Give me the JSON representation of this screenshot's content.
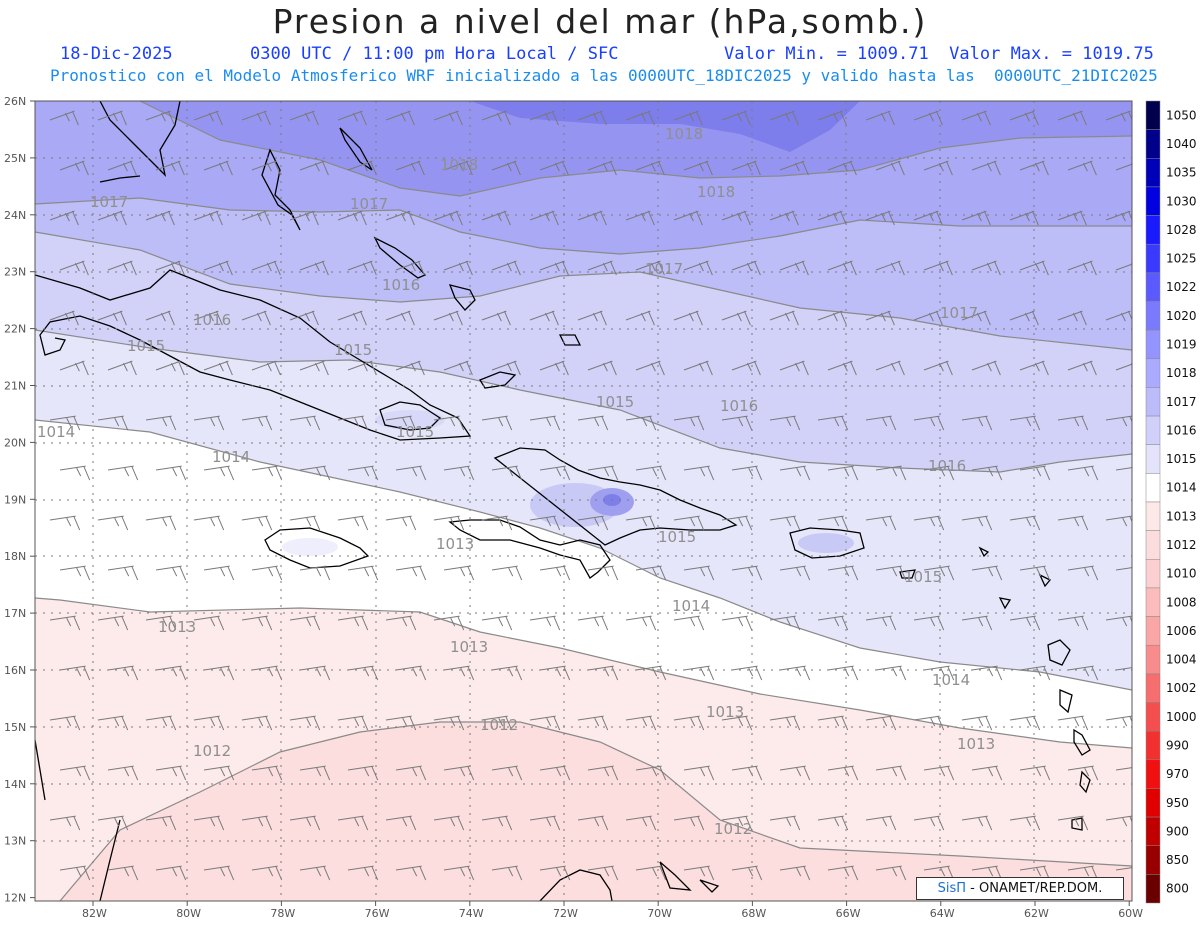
{
  "header": {
    "title": "Presion a nivel del mar (hPa,somb.)",
    "date": "18-Dic-2025",
    "time": "0300 UTC / 11:00 pm Hora Local / SFC",
    "minmax": "Valor Min. = 1009.71  Valor Max. = 1019.75",
    "model_line": "Pronostico con el Modelo Atmosferico WRF inicializado a las 0000UTC_18DIC2025 y valido hasta las  0000UTC_21DIC2025"
  },
  "axes": {
    "lat_labels": [
      "26N",
      "25N",
      "24N",
      "23N",
      "22N",
      "21N",
      "20N",
      "19N",
      "18N",
      "17N",
      "16N",
      "15N",
      "14N",
      "13N",
      "12N"
    ],
    "lon_labels": [
      "82W",
      "80W",
      "78W",
      "76W",
      "74W",
      "72W",
      "70W",
      "68W",
      "66W",
      "64W",
      "62W",
      "60W"
    ]
  },
  "colorbar": {
    "levels": [
      "1050",
      "1040",
      "1035",
      "1030",
      "1028",
      "1025",
      "1022",
      "1020",
      "1019",
      "1018",
      "1017",
      "1016",
      "1015",
      "1014",
      "1013",
      "1012",
      "1010",
      "1008",
      "1006",
      "1004",
      "1002",
      "1000",
      "990",
      "970",
      "950",
      "900",
      "850",
      "800"
    ],
    "colors": [
      "#00004f",
      "#00008b",
      "#0000b8",
      "#0000e0",
      "#1a1aff",
      "#3a3aff",
      "#5a5aff",
      "#7a7aff",
      "#9494ff",
      "#aaaaff",
      "#bcbcfb",
      "#d0d0fa",
      "#e3e3fb",
      "#ffffff",
      "#fde8e8",
      "#fcdcdc",
      "#fcd0d0",
      "#fcbcbc",
      "#faa6a6",
      "#f88c8c",
      "#f66e6e",
      "#f44e4e",
      "#f23030",
      "#f01010",
      "#e00000",
      "#c00000",
      "#980000",
      "#6a0000"
    ]
  },
  "contour_labels": {
    "l1018a": "1018",
    "l1018b": "1018",
    "l1018c": "1018",
    "l1017a": "1017",
    "l1017b": "1017",
    "l1017c": "1017",
    "l1017d": "1017",
    "l1016a": "1016",
    "l1016b": "1016",
    "l1016c": "1016",
    "l1016d": "1016",
    "l1015a": "1015",
    "l1015b": "1015",
    "l1015c": "1015",
    "l1015d": "1015",
    "l1015e": "1015",
    "l1015f": "1015",
    "l1014a": "1014",
    "l1014b": "1014",
    "l1014c": "1014",
    "l1014d": "1014",
    "l1013a": "1013",
    "l1013b": "1013",
    "l1013c": "1013",
    "l1013d": "1013",
    "l1013e": "1013",
    "l1012a": "1012",
    "l1012b": "1012",
    "l1012c": "1012"
  },
  "credit": {
    "brand": "SisΠ",
    "text": "- ONAMET/REP.DOM."
  }
}
